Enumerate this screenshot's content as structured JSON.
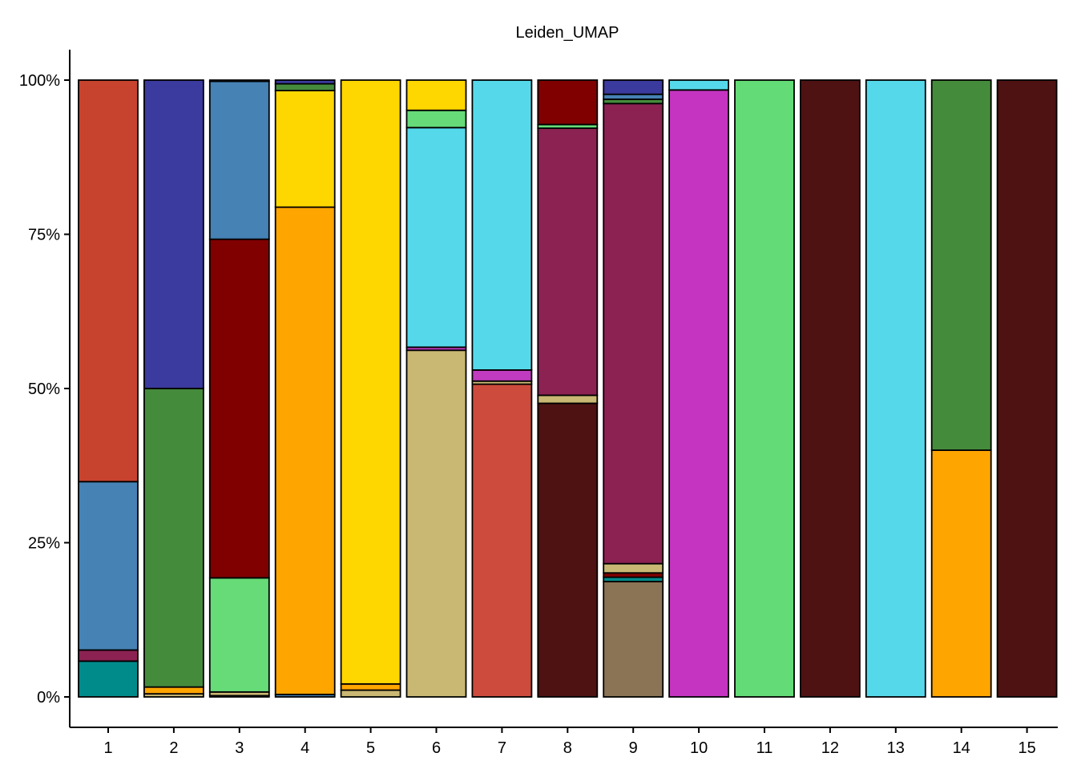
{
  "chart_data": {
    "type": "bar",
    "stacked": true,
    "normalized": true,
    "title": "Leiden_UMAP",
    "xlabel": "",
    "ylabel": "",
    "ylim": [
      0,
      1
    ],
    "y_ticks": [
      0,
      0.25,
      0.5,
      0.75,
      1.0
    ],
    "y_tick_labels": [
      "0%",
      "25%",
      "50%",
      "75%",
      "100%"
    ],
    "grid": false,
    "legend": "none",
    "categories": [
      "1",
      "2",
      "3",
      "4",
      "5",
      "6",
      "7",
      "8",
      "9",
      "10",
      "11",
      "12",
      "13",
      "14",
      "15"
    ],
    "bars": [
      {
        "category": "1",
        "segments": [
          {
            "color": "#008B8B",
            "value": 0.058
          },
          {
            "color": "#8B2252",
            "value": 0.018
          },
          {
            "color": "#4682B4",
            "value": 0.273
          },
          {
            "color": "#C7432E",
            "value": 0.651
          }
        ]
      },
      {
        "category": "2",
        "segments": [
          {
            "color": "#C9B873",
            "value": 0.005
          },
          {
            "color": "#FFA500",
            "value": 0.011
          },
          {
            "color": "#458B3C",
            "value": 0.484
          },
          {
            "color": "#3B3A9E",
            "value": 0.5
          }
        ]
      },
      {
        "category": "3",
        "segments": [
          {
            "color": "#8B2252",
            "value": 0.002
          },
          {
            "color": "#C9B873",
            "value": 0.006
          },
          {
            "color": "#66DB78",
            "value": 0.185
          },
          {
            "color": "#800000",
            "value": 0.549
          },
          {
            "color": "#4682B4",
            "value": 0.256
          },
          {
            "color": "#3B3A9E",
            "value": 0.002
          }
        ]
      },
      {
        "category": "4",
        "segments": [
          {
            "color": "#4682B4",
            "value": 0.004
          },
          {
            "color": "#FFA500",
            "value": 0.79
          },
          {
            "color": "#FFD700",
            "value": 0.189
          },
          {
            "color": "#458B3C",
            "value": 0.011
          },
          {
            "color": "#3B3A9E",
            "value": 0.006
          }
        ]
      },
      {
        "category": "5",
        "segments": [
          {
            "color": "#C9B873",
            "value": 0.011
          },
          {
            "color": "#FFA500",
            "value": 0.01
          },
          {
            "color": "#FFD700",
            "value": 0.979
          }
        ]
      },
      {
        "category": "6",
        "segments": [
          {
            "color": "#C9B873",
            "value": 0.562
          },
          {
            "color": "#C03BBF",
            "value": 0.005
          },
          {
            "color": "#55D9EA",
            "value": 0.356
          },
          {
            "color": "#66DB78",
            "value": 0.028
          },
          {
            "color": "#FFD700",
            "value": 0.049
          }
        ]
      },
      {
        "category": "7",
        "segments": [
          {
            "color": "#CC4B3D",
            "value": 0.507
          },
          {
            "color": "#C9B873",
            "value": 0.005
          },
          {
            "color": "#C03BBF",
            "value": 0.018
          },
          {
            "color": "#55D9EA",
            "value": 0.47
          }
        ]
      },
      {
        "category": "8",
        "segments": [
          {
            "color": "#4E1212",
            "value": 0.476
          },
          {
            "color": "#C9B873",
            "value": 0.013
          },
          {
            "color": "#8B2252",
            "value": 0.433
          },
          {
            "color": "#66DB78",
            "value": 0.006
          },
          {
            "color": "#800000",
            "value": 0.072
          }
        ]
      },
      {
        "category": "9",
        "segments": [
          {
            "color": "#8B7355",
            "value": 0.187
          },
          {
            "color": "#008B8B",
            "value": 0.007
          },
          {
            "color": "#800000",
            "value": 0.007
          },
          {
            "color": "#C9B873",
            "value": 0.015
          },
          {
            "color": "#8B2252",
            "value": 0.746
          },
          {
            "color": "#458B3C",
            "value": 0.007
          },
          {
            "color": "#4682B4",
            "value": 0.008
          },
          {
            "color": "#3B3A9E",
            "value": 0.023
          }
        ]
      },
      {
        "category": "10",
        "segments": [
          {
            "color": "#C434C0",
            "value": 0.984
          },
          {
            "color": "#55D9EA",
            "value": 0.016
          }
        ]
      },
      {
        "category": "11",
        "segments": [
          {
            "color": "#63DB76",
            "value": 1.0
          }
        ]
      },
      {
        "category": "12",
        "segments": [
          {
            "color": "#4E1212",
            "value": 1.0
          }
        ]
      },
      {
        "category": "13",
        "segments": [
          {
            "color": "#55D9EA",
            "value": 1.0
          }
        ]
      },
      {
        "category": "14",
        "segments": [
          {
            "color": "#FFA500",
            "value": 0.4
          },
          {
            "color": "#458B3C",
            "value": 0.6
          }
        ]
      },
      {
        "category": "15",
        "segments": [
          {
            "color": "#4E1212",
            "value": 1.0
          }
        ]
      }
    ]
  }
}
